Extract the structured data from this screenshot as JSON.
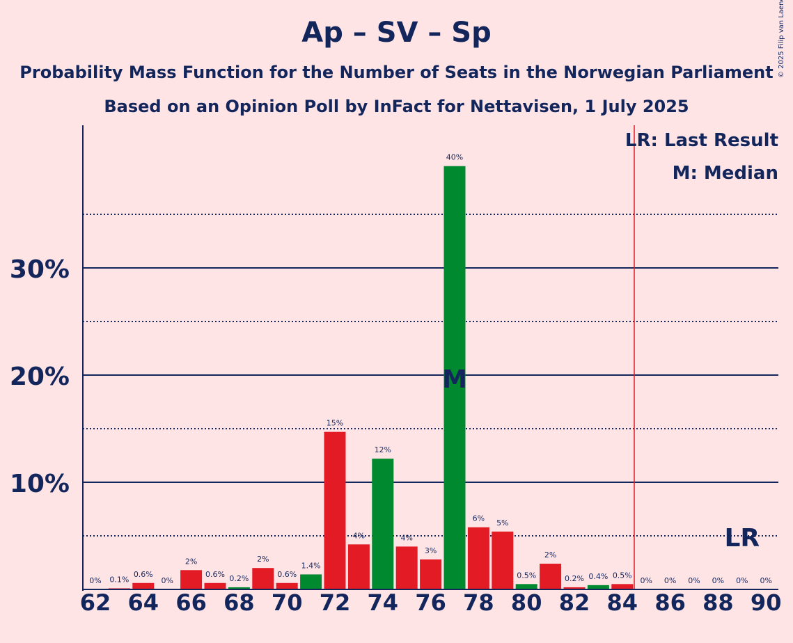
{
  "header": {
    "title": "Ap – SV – Sp",
    "subtitle": "Probability Mass Function for the Number of Seats in the Norwegian Parliament",
    "subtitle2": "Based on an Opinion Poll by InFact for Nettavisen, 1 July 2025",
    "copyright": "© 2025 Filip van Laenen"
  },
  "legend": {
    "last_result": "LR: Last Result",
    "median": "M: Median"
  },
  "colors": {
    "background": "#FFE4E6",
    "text": "#13265C",
    "red_bar": "#E21B25",
    "green_bar": "#00892F",
    "last_result_line": "#E21B25"
  },
  "chart_data": {
    "type": "bar",
    "x": [
      62,
      63,
      64,
      65,
      66,
      67,
      68,
      69,
      70,
      71,
      72,
      73,
      74,
      75,
      76,
      77,
      78,
      79,
      80,
      81,
      82,
      83,
      84,
      85,
      86,
      87,
      88,
      89,
      90
    ],
    "values": [
      0,
      0.1,
      0.6,
      0,
      1.8,
      0.6,
      0.2,
      2.0,
      0.6,
      1.4,
      14.7,
      4.2,
      12.2,
      4.0,
      2.8,
      39.5,
      5.8,
      5.4,
      0.5,
      2.4,
      0.2,
      0.4,
      0.5,
      0,
      0,
      0,
      0,
      0,
      0
    ],
    "labels": [
      "0%",
      "0.1%",
      "0.6%",
      "0%",
      "2%",
      "0.6%",
      "0.2%",
      "2%",
      "0.6%",
      "1.4%",
      "15%",
      "4%",
      "12%",
      "4%",
      "3%",
      "40%",
      "6%",
      "5%",
      "0.5%",
      "2%",
      "0.2%",
      "0.4%",
      "0.5%",
      "0%",
      "0%",
      "0%",
      "0%",
      "0%",
      "0%"
    ],
    "bar_colors": [
      "red",
      "red",
      "red",
      "red",
      "red",
      "red",
      "green",
      "red",
      "red",
      "green",
      "red",
      "red",
      "green",
      "red",
      "red",
      "green",
      "red",
      "red",
      "green",
      "red",
      "red",
      "green",
      "red",
      "red",
      "red",
      "red",
      "red",
      "red",
      "red"
    ],
    "x_ticks": [
      62,
      64,
      66,
      68,
      70,
      72,
      74,
      76,
      78,
      80,
      82,
      84,
      86,
      88,
      90
    ],
    "y_ticks": [
      10,
      20,
      30
    ],
    "y_tick_labels": [
      "10%",
      "20%",
      "30%"
    ],
    "dotted_gridlines": [
      5,
      15,
      25,
      35
    ],
    "ylim": [
      0,
      43
    ],
    "median": 77,
    "median_label": "M",
    "last_result": 84.5,
    "last_result_label_x": 89,
    "last_result_label": "LR"
  }
}
